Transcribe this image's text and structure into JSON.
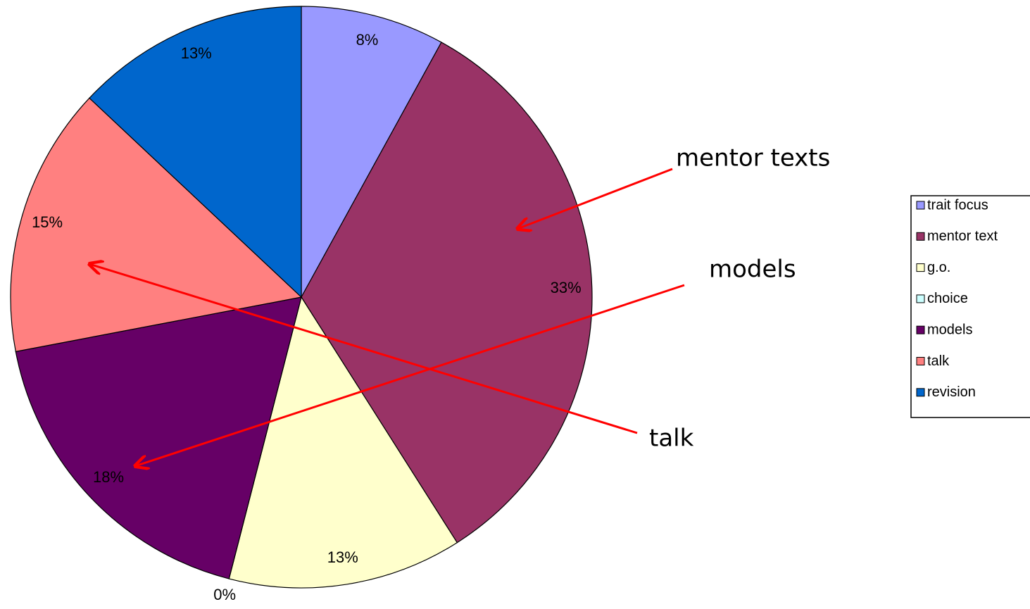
{
  "chart_data": {
    "type": "pie",
    "categories": [
      "trait focus",
      "mentor text",
      "g.o.",
      "choice",
      "models",
      "talk",
      "revision"
    ],
    "values": [
      8,
      33,
      13,
      0,
      18,
      15,
      13
    ],
    "value_labels": [
      "8%",
      "33%",
      "13%",
      "0%",
      "18%",
      "15%",
      "13%"
    ],
    "colors": [
      "#9999ff",
      "#993366",
      "#ffffcc",
      "#ccffff",
      "#660066",
      "#ff8080",
      "#0066cc"
    ],
    "legend": "right",
    "annotations": [
      "mentor texts",
      "models",
      "talk"
    ]
  }
}
